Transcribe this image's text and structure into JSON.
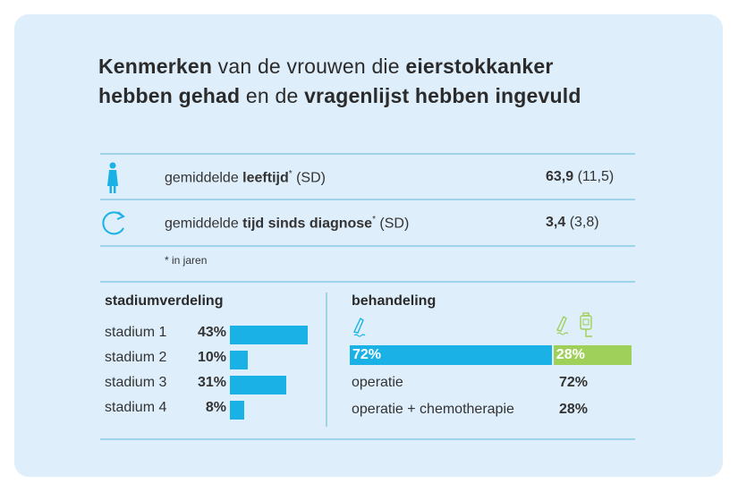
{
  "title": {
    "p1_bold": "Kenmerken",
    "p1": " van de vrouwen die ",
    "p2_bold": "eierstokkanker",
    "p3_bold": "hebben gehad",
    "p3": " en de ",
    "p4_bold": "vragenlijst hebben ingevuld"
  },
  "stats": [
    {
      "icon": "woman-icon",
      "pre": "gemiddelde ",
      "bold": "leeftijd",
      "star": "*",
      "post": " (SD)",
      "value": "63,9",
      "sd": " (11,5)"
    },
    {
      "icon": "cycle-arrow-icon",
      "pre": "gemiddelde ",
      "bold": "tijd sinds diagnose",
      "star": "*",
      "post": " (SD)",
      "value": "3,4",
      "sd": " (3,8)"
    }
  ],
  "footnote": "* in jaren",
  "colors": {
    "blue": "#1ab2e6",
    "green": "#9fd05a",
    "background": "#deeefb"
  },
  "chart_data": [
    {
      "type": "bar",
      "title": "stadiumverdeling",
      "categories": [
        "stadium 1",
        "stadium 2",
        "stadium 3",
        "stadium 4"
      ],
      "values": [
        43,
        10,
        31,
        8
      ],
      "labels": [
        "43%",
        "10%",
        "31%",
        "8%"
      ],
      "unit": "%"
    },
    {
      "type": "bar",
      "title": "behandeling",
      "stacked": true,
      "categories": [
        "operatie",
        "operatie + chemotherapie"
      ],
      "values": [
        72,
        28
      ],
      "labels": [
        "72%",
        "28%"
      ],
      "unit": "%"
    }
  ]
}
